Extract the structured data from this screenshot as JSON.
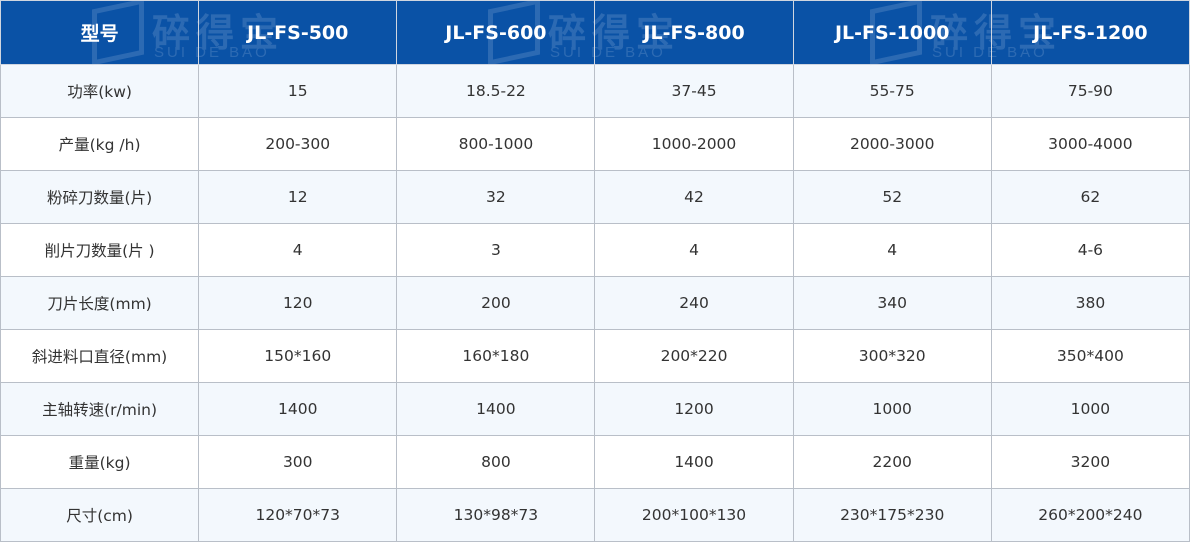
{
  "watermark": {
    "cn": "碎得宝",
    "en": "SUI DE BAO"
  },
  "colors": {
    "header_bg": "#0a52a6",
    "row_alt": "#f3f8fd",
    "border": "#b9bfc8"
  },
  "header": [
    "型号",
    "JL-FS-500",
    "JL-FS-600",
    "JL-FS-800",
    "JL-FS-1000",
    "JL-FS-1200"
  ],
  "rows": [
    [
      "功率(kw)",
      "15",
      "18.5-22",
      "37-45",
      "55-75",
      "75-90"
    ],
    [
      "产量(kg /h)",
      "200-300",
      "800-1000",
      "1000-2000",
      "2000-3000",
      "3000-4000"
    ],
    [
      "粉碎刀数量(片)",
      "12",
      "32",
      "42",
      "52",
      "62"
    ],
    [
      "削片刀数量(片 )",
      "4",
      "3",
      "4",
      "4",
      "4-6"
    ],
    [
      "刀片长度(mm)",
      "120",
      "200",
      "240",
      "340",
      "380"
    ],
    [
      "斜进料口直径(mm)",
      "150*160",
      "160*180",
      "200*220",
      "300*320",
      "350*400"
    ],
    [
      "主轴转速(r/min)",
      "1400",
      "1400",
      "1200",
      "1000",
      "1000"
    ],
    [
      "重量(kg)",
      "300",
      "800",
      "1400",
      "2200",
      "3200"
    ],
    [
      "尺寸(cm)",
      "120*70*73",
      "130*98*73",
      "200*100*130",
      "230*175*230",
      "260*200*240"
    ]
  ]
}
